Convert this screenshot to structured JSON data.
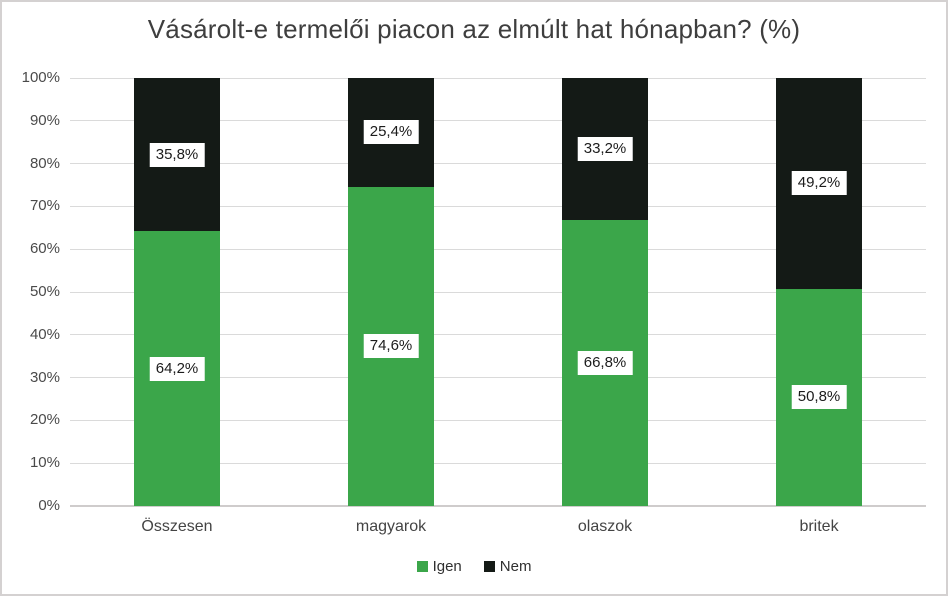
{
  "title": "Vásárolt-e termelői piacon az elmúlt hat hónapban? (%)",
  "colors": {
    "igen": "#3ba64a",
    "nem": "#141a16",
    "gridline": "#dadada",
    "axis_line": "#cfcccc",
    "title_text": "#3e3e3e",
    "axis_text": "#4a4a4a",
    "data_label_text": "#1c1c1c",
    "data_label_bg": "#ffffff",
    "frame_border": "#d4d1d1",
    "background": "#ffffff"
  },
  "chart_data": {
    "type": "bar",
    "stacked": true,
    "percent_stacked": true,
    "title": "Vásárolt-e termelői piacon az elmúlt hat hónapban? (%)",
    "categories": [
      "Összesen",
      "magyarok",
      "olaszok",
      "britek"
    ],
    "series": [
      {
        "name": "Igen",
        "color": "#3ba64a",
        "values": [
          64.2,
          74.6,
          66.8,
          50.8
        ],
        "labels": [
          "64,2%",
          "74,6%",
          "66,8%",
          "50,8%"
        ]
      },
      {
        "name": "Nem",
        "color": "#141a16",
        "values": [
          35.8,
          25.4,
          33.2,
          49.2
        ],
        "labels": [
          "35,8%",
          "25,4%",
          "33,2%",
          "49,2%"
        ]
      }
    ],
    "xlabel": "",
    "ylabel": "",
    "y_axis": {
      "min": 0,
      "max": 100,
      "tick_step": 10,
      "tick_labels": [
        "0%",
        "10%",
        "20%",
        "30%",
        "40%",
        "50%",
        "60%",
        "70%",
        "80%",
        "90%",
        "100%"
      ]
    },
    "grid": true,
    "legend": {
      "position": "bottom",
      "entries": [
        "Igen",
        "Nem"
      ]
    }
  }
}
